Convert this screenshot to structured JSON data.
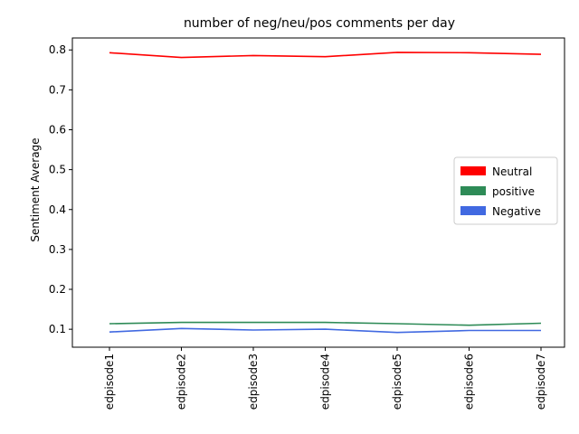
{
  "chart_data": {
    "type": "line",
    "title": "number of neg/neu/pos comments per day",
    "xlabel": "",
    "ylabel": "Sentiment Average",
    "categories": [
      "edpisode1",
      "edpisode2",
      "edpisode3",
      "edpisode4",
      "edpisode5",
      "edpisode6",
      "edpisode7"
    ],
    "ylim": [
      0.055,
      0.83
    ],
    "yticks": [
      0.1,
      0.2,
      0.3,
      0.4,
      0.5,
      0.6,
      0.7,
      0.8
    ],
    "ytick_labels": [
      "0.1",
      "0.2",
      "0.3",
      "0.4",
      "0.5",
      "0.6",
      "0.7",
      "0.8"
    ],
    "grid": false,
    "legend_position": "center-right",
    "series": [
      {
        "name": "Neutral",
        "color": "#ff0000",
        "values": [
          0.793,
          0.781,
          0.786,
          0.783,
          0.794,
          0.793,
          0.789
        ]
      },
      {
        "name": "positive",
        "color": "#2e8b57",
        "values": [
          0.114,
          0.117,
          0.117,
          0.117,
          0.114,
          0.11,
          0.115
        ]
      },
      {
        "name": "Negative",
        "color": "#4169e1",
        "values": [
          0.093,
          0.102,
          0.098,
          0.1,
          0.092,
          0.097,
          0.097
        ]
      }
    ]
  }
}
